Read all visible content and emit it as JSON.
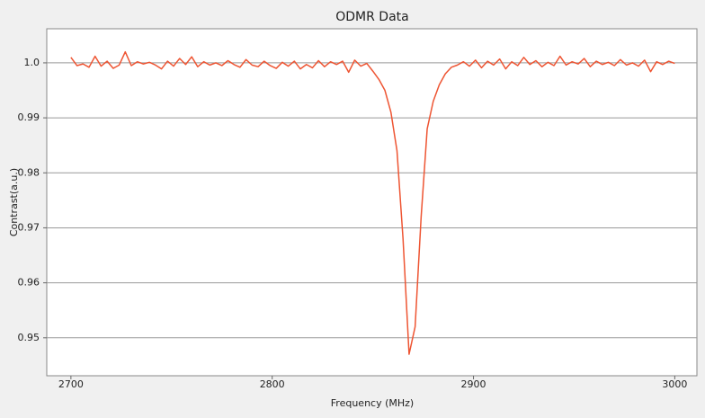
{
  "chart_data": {
    "type": "line",
    "title": "ODMR Data",
    "x_label": "Frequency (MHz)",
    "y_label": "Contrast(a.u.)",
    "x": [
      2700,
      2703,
      2706,
      2709,
      2712,
      2715,
      2718,
      2721,
      2724,
      2727,
      2730,
      2733,
      2736,
      2739,
      2742,
      2745,
      2748,
      2751,
      2754,
      2757,
      2760,
      2763,
      2766,
      2769,
      2772,
      2775,
      2778,
      2781,
      2784,
      2787,
      2790,
      2793,
      2796,
      2799,
      2802,
      2805,
      2808,
      2811,
      2814,
      2817,
      2820,
      2823,
      2826,
      2829,
      2832,
      2835,
      2838,
      2841,
      2844,
      2847,
      2850,
      2853,
      2856,
      2859,
      2862,
      2865,
      2868,
      2871,
      2874,
      2877,
      2880,
      2883,
      2886,
      2889,
      2892,
      2895,
      2898,
      2901,
      2904,
      2907,
      2910,
      2913,
      2916,
      2919,
      2922,
      2925,
      2928,
      2931,
      2934,
      2937,
      2940,
      2943,
      2946,
      2949,
      2952,
      2955,
      2958,
      2961,
      2964,
      2967,
      2970,
      2973,
      2976,
      2979,
      2982,
      2985,
      2988,
      2991,
      2994,
      2997,
      3000
    ],
    "series": [
      {
        "name": "ODMR",
        "color": "#ee5533",
        "values": [
          1.001,
          0.9995,
          0.9998,
          0.9992,
          1.0012,
          0.9994,
          1.0003,
          0.999,
          0.9996,
          1.002,
          0.9995,
          1.0002,
          0.9998,
          1.0001,
          0.9996,
          0.9989,
          1.0003,
          0.9994,
          1.0008,
          0.9997,
          1.0011,
          0.9993,
          1.0002,
          0.9996,
          1.0,
          0.9995,
          1.0004,
          0.9997,
          0.9992,
          1.0006,
          0.9996,
          0.9993,
          1.0003,
          0.9995,
          0.999,
          1.0001,
          0.9994,
          1.0003,
          0.9989,
          0.9997,
          0.9991,
          1.0004,
          0.9993,
          1.0002,
          0.9997,
          1.0003,
          0.9983,
          1.0005,
          0.9994,
          0.9999,
          0.9985,
          0.997,
          0.995,
          0.991,
          0.984,
          0.968,
          0.947,
          0.952,
          0.972,
          0.988,
          0.993,
          0.996,
          0.998,
          0.9992,
          0.9996,
          1.0002,
          0.9994,
          1.0005,
          0.9991,
          1.0003,
          0.9996,
          1.0007,
          0.9989,
          1.0002,
          0.9995,
          1.001,
          0.9997,
          1.0004,
          0.9993,
          1.0001,
          0.9995,
          1.0012,
          0.9996,
          1.0002,
          0.9998,
          1.0008,
          0.9993,
          1.0003,
          0.9997,
          1.0001,
          0.9995,
          1.0006,
          0.9996,
          1.0,
          0.9994,
          1.0005,
          0.9984,
          1.0002,
          0.9997,
          1.0003,
          0.9999
        ]
      }
    ],
    "xlim": [
      2688,
      3011
    ],
    "ylim": [
      0.9431,
      1.0062
    ],
    "xticks": [
      2700,
      2800,
      2900,
      3000
    ],
    "yticks": [
      0.95,
      0.96,
      0.97,
      0.98,
      0.99,
      {
        "value": 1,
        "label": "1.0"
      }
    ],
    "grid": true
  }
}
